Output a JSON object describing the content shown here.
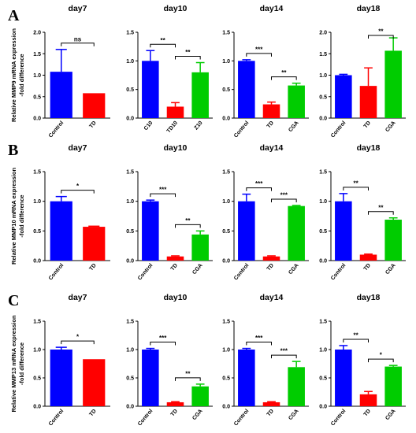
{
  "colors": {
    "blue": "#0000ff",
    "red": "#ff0000",
    "green": "#00cc00"
  },
  "row_letters": [
    "A",
    "B",
    "C"
  ],
  "row_ylabels": [
    [
      "Relative MMP9 mRNA expression",
      "-fold difference"
    ],
    [
      "Relative MMP10 mRNA expression",
      "-fold difference"
    ],
    [
      "Relative MMP13 mRNA expression",
      "-fold difference"
    ]
  ],
  "chart_data": [
    {
      "type": "bar",
      "title": "day7",
      "ylim": [
        0,
        2.0
      ],
      "yticks": [
        "0.0",
        "0.5",
        "1.0",
        "1.5",
        "2.0"
      ],
      "categories": [
        "Control",
        "TD"
      ],
      "values": [
        1.08,
        0.58
      ],
      "errors": [
        0.52,
        0.0
      ],
      "colors": [
        "blue",
        "red"
      ],
      "sig": [
        {
          "from": 0,
          "to": 1,
          "label": "ns"
        }
      ]
    },
    {
      "type": "bar",
      "title": "day10",
      "ylim": [
        0,
        1.5
      ],
      "yticks": [
        "0.0",
        "0.5",
        "1.0",
        "1.5"
      ],
      "categories": [
        "C10",
        "TD10",
        "Z10"
      ],
      "values": [
        1.0,
        0.2,
        0.8
      ],
      "errors": [
        0.18,
        0.07,
        0.17
      ],
      "colors": [
        "blue",
        "red",
        "green"
      ],
      "sig": [
        {
          "from": 0,
          "to": 1,
          "label": "**"
        },
        {
          "from": 1,
          "to": 2,
          "label": "**"
        }
      ]
    },
    {
      "type": "bar",
      "title": "day14",
      "ylim": [
        0,
        1.5
      ],
      "yticks": [
        "0.0",
        "0.5",
        "1.0",
        "1.5"
      ],
      "categories": [
        "Control",
        "TD",
        "CGA"
      ],
      "values": [
        1.0,
        0.24,
        0.57
      ],
      "errors": [
        0.02,
        0.04,
        0.04
      ],
      "colors": [
        "blue",
        "red",
        "green"
      ],
      "sig": [
        {
          "from": 0,
          "to": 1,
          "label": "***"
        },
        {
          "from": 1,
          "to": 2,
          "label": "**"
        }
      ]
    },
    {
      "type": "bar",
      "title": "day18",
      "ylim": [
        0,
        2.0
      ],
      "yticks": [
        "0.0",
        "0.5",
        "1.0",
        "1.5",
        "2.0"
      ],
      "categories": [
        "Control",
        "TD",
        "CGA"
      ],
      "values": [
        1.0,
        0.75,
        1.57
      ],
      "errors": [
        0.02,
        0.42,
        0.3
      ],
      "colors": [
        "blue",
        "red",
        "green"
      ],
      "sig": [
        {
          "from": 1,
          "to": 2,
          "label": "**"
        }
      ]
    },
    {
      "type": "bar",
      "title": "day7",
      "ylim": [
        0,
        1.5
      ],
      "yticks": [
        "0.0",
        "0.5",
        "1.0",
        "1.5"
      ],
      "categories": [
        "Control",
        "TD"
      ],
      "values": [
        1.0,
        0.57
      ],
      "errors": [
        0.08,
        0.01
      ],
      "colors": [
        "blue",
        "red"
      ],
      "sig": [
        {
          "from": 0,
          "to": 1,
          "label": "*"
        }
      ]
    },
    {
      "type": "bar",
      "title": "day10",
      "ylim": [
        0,
        1.5
      ],
      "yticks": [
        "0.0",
        "0.5",
        "1.0",
        "1.5"
      ],
      "categories": [
        "Control",
        "TD",
        "CGA"
      ],
      "values": [
        1.0,
        0.07,
        0.44
      ],
      "errors": [
        0.02,
        0.01,
        0.06
      ],
      "colors": [
        "blue",
        "red",
        "green"
      ],
      "sig": [
        {
          "from": 0,
          "to": 1,
          "label": "***"
        },
        {
          "from": 1,
          "to": 2,
          "label": "**"
        }
      ]
    },
    {
      "type": "bar",
      "title": "day14",
      "ylim": [
        0,
        1.5
      ],
      "yticks": [
        "0.0",
        "0.5",
        "1.0",
        "1.5"
      ],
      "categories": [
        "Control",
        "TD",
        "CGA"
      ],
      "values": [
        1.0,
        0.07,
        0.92
      ],
      "errors": [
        0.12,
        0.01,
        0.01
      ],
      "colors": [
        "blue",
        "red",
        "green"
      ],
      "sig": [
        {
          "from": 0,
          "to": 1,
          "label": "***"
        },
        {
          "from": 1,
          "to": 2,
          "label": "***"
        }
      ]
    },
    {
      "type": "bar",
      "title": "day18",
      "ylim": [
        0,
        1.5
      ],
      "yticks": [
        "0.0",
        "0.5",
        "1.0",
        "1.5"
      ],
      "categories": [
        "Control",
        "TD",
        "CGA"
      ],
      "values": [
        1.0,
        0.1,
        0.69
      ],
      "errors": [
        0.13,
        0.01,
        0.03
      ],
      "colors": [
        "blue",
        "red",
        "green"
      ],
      "sig": [
        {
          "from": 0,
          "to": 1,
          "label": "**"
        },
        {
          "from": 1,
          "to": 2,
          "label": "**"
        }
      ]
    },
    {
      "type": "bar",
      "title": "day7",
      "ylim": [
        0,
        1.5
      ],
      "yticks": [
        "0.0",
        "0.5",
        "1.0",
        "1.5"
      ],
      "categories": [
        "Control",
        "TD"
      ],
      "values": [
        1.0,
        0.83
      ],
      "errors": [
        0.04,
        0.0
      ],
      "colors": [
        "blue",
        "red"
      ],
      "sig": [
        {
          "from": 0,
          "to": 1,
          "label": "*"
        }
      ]
    },
    {
      "type": "bar",
      "title": "day10",
      "ylim": [
        0,
        1.5
      ],
      "yticks": [
        "0.0",
        "0.5",
        "1.0",
        "1.5"
      ],
      "categories": [
        "Control",
        "TD",
        "CGA"
      ],
      "values": [
        1.0,
        0.07,
        0.35
      ],
      "errors": [
        0.02,
        0.01,
        0.04
      ],
      "colors": [
        "blue",
        "red",
        "green"
      ],
      "sig": [
        {
          "from": 0,
          "to": 1,
          "label": "***"
        },
        {
          "from": 1,
          "to": 2,
          "label": "**"
        }
      ]
    },
    {
      "type": "bar",
      "title": "day14",
      "ylim": [
        0,
        1.5
      ],
      "yticks": [
        "0.0",
        "0.5",
        "1.0",
        "1.5"
      ],
      "categories": [
        "Control",
        "TD",
        "CGA"
      ],
      "values": [
        1.0,
        0.07,
        0.69
      ],
      "errors": [
        0.02,
        0.01,
        0.1
      ],
      "colors": [
        "blue",
        "red",
        "green"
      ],
      "sig": [
        {
          "from": 0,
          "to": 1,
          "label": "***"
        },
        {
          "from": 1,
          "to": 2,
          "label": "***"
        }
      ]
    },
    {
      "type": "bar",
      "title": "day18",
      "ylim": [
        0,
        1.5
      ],
      "yticks": [
        "0.0",
        "0.5",
        "1.0",
        "1.5"
      ],
      "categories": [
        "Control",
        "TD",
        "CGA"
      ],
      "values": [
        1.0,
        0.21,
        0.7
      ],
      "errors": [
        0.07,
        0.05,
        0.02
      ],
      "colors": [
        "blue",
        "red",
        "green"
      ],
      "sig": [
        {
          "from": 0,
          "to": 1,
          "label": "**"
        },
        {
          "from": 1,
          "to": 2,
          "label": "*"
        }
      ]
    }
  ]
}
